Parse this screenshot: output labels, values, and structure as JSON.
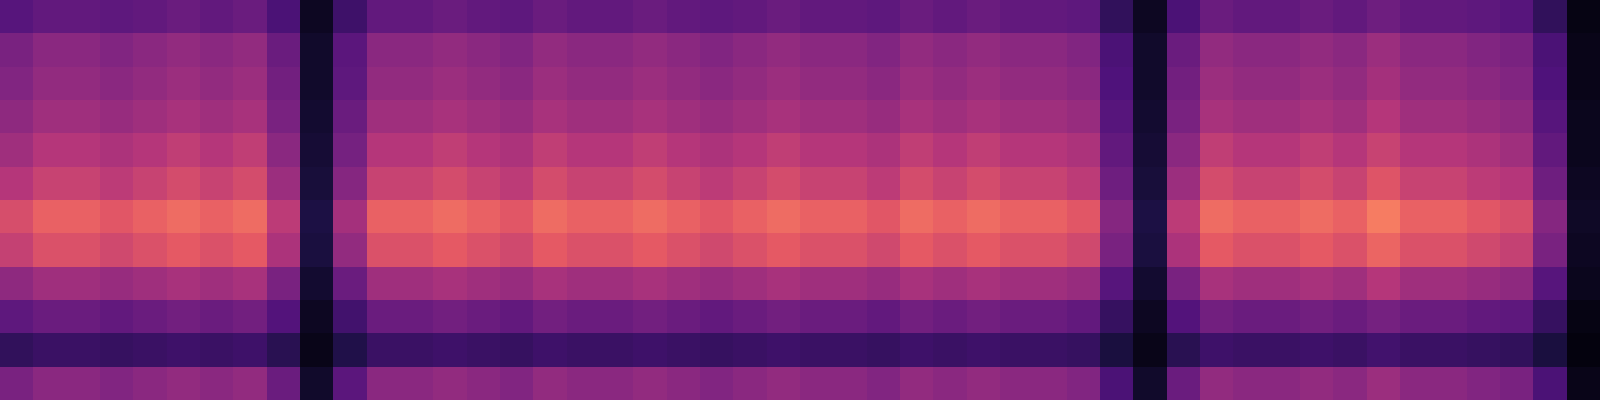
{
  "chart_data": {
    "type": "heatmap",
    "color": "magma",
    "tick_labels": false,
    "zlim": [
      0,
      1
    ],
    "cells": [
      [
        0.27,
        0.3,
        0.3,
        0.29,
        0.3,
        0.32,
        0.3,
        0.32,
        0.24,
        0.06,
        0.21,
        0.3,
        0.3,
        0.32,
        0.3,
        0.29,
        0.32,
        0.3,
        0.3,
        0.32,
        0.3,
        0.29,
        0.3,
        0.32,
        0.3,
        0.3,
        0.29,
        0.32,
        0.3,
        0.32,
        0.3,
        0.3,
        0.29,
        0.18,
        0.06,
        0.24,
        0.32,
        0.3,
        0.3,
        0.32,
        0.3,
        0.33,
        0.3,
        0.3,
        0.29,
        0.27,
        0.18,
        0.03
      ],
      [
        0.36,
        0.4,
        0.4,
        0.38,
        0.4,
        0.42,
        0.4,
        0.42,
        0.32,
        0.08,
        0.28,
        0.4,
        0.4,
        0.42,
        0.4,
        0.38,
        0.42,
        0.4,
        0.4,
        0.42,
        0.4,
        0.38,
        0.4,
        0.42,
        0.4,
        0.4,
        0.38,
        0.42,
        0.4,
        0.42,
        0.4,
        0.4,
        0.38,
        0.24,
        0.08,
        0.32,
        0.42,
        0.4,
        0.4,
        0.42,
        0.4,
        0.44,
        0.4,
        0.4,
        0.38,
        0.36,
        0.24,
        0.04
      ],
      [
        0.38,
        0.42,
        0.42,
        0.4,
        0.42,
        0.44,
        0.42,
        0.44,
        0.34,
        0.08,
        0.29,
        0.42,
        0.42,
        0.44,
        0.42,
        0.4,
        0.44,
        0.42,
        0.42,
        0.44,
        0.42,
        0.4,
        0.42,
        0.44,
        0.42,
        0.42,
        0.4,
        0.44,
        0.42,
        0.44,
        0.42,
        0.42,
        0.4,
        0.25,
        0.08,
        0.34,
        0.44,
        0.42,
        0.42,
        0.44,
        0.42,
        0.46,
        0.42,
        0.42,
        0.4,
        0.38,
        0.25,
        0.04
      ],
      [
        0.41,
        0.45,
        0.45,
        0.43,
        0.45,
        0.47,
        0.45,
        0.47,
        0.36,
        0.09,
        0.32,
        0.45,
        0.45,
        0.47,
        0.45,
        0.43,
        0.47,
        0.45,
        0.45,
        0.47,
        0.45,
        0.43,
        0.45,
        0.47,
        0.45,
        0.45,
        0.43,
        0.47,
        0.45,
        0.47,
        0.45,
        0.45,
        0.43,
        0.27,
        0.09,
        0.36,
        0.47,
        0.45,
        0.45,
        0.47,
        0.45,
        0.5,
        0.45,
        0.45,
        0.43,
        0.41,
        0.27,
        0.05
      ],
      [
        0.45,
        0.5,
        0.5,
        0.48,
        0.5,
        0.53,
        0.5,
        0.53,
        0.4,
        0.1,
        0.35,
        0.5,
        0.5,
        0.53,
        0.5,
        0.48,
        0.53,
        0.5,
        0.5,
        0.53,
        0.5,
        0.48,
        0.5,
        0.53,
        0.5,
        0.5,
        0.48,
        0.53,
        0.5,
        0.53,
        0.5,
        0.5,
        0.48,
        0.3,
        0.1,
        0.4,
        0.53,
        0.5,
        0.5,
        0.53,
        0.5,
        0.55,
        0.5,
        0.5,
        0.48,
        0.45,
        0.3,
        0.05
      ],
      [
        0.5,
        0.55,
        0.55,
        0.52,
        0.55,
        0.58,
        0.55,
        0.58,
        0.44,
        0.11,
        0.39,
        0.55,
        0.55,
        0.58,
        0.55,
        0.52,
        0.58,
        0.55,
        0.55,
        0.58,
        0.55,
        0.52,
        0.55,
        0.58,
        0.55,
        0.55,
        0.52,
        0.58,
        0.55,
        0.58,
        0.55,
        0.55,
        0.52,
        0.33,
        0.11,
        0.44,
        0.58,
        0.55,
        0.55,
        0.58,
        0.55,
        0.61,
        0.55,
        0.55,
        0.52,
        0.5,
        0.33,
        0.06
      ],
      [
        0.59,
        0.65,
        0.65,
        0.62,
        0.65,
        0.68,
        0.65,
        0.68,
        0.52,
        0.13,
        0.46,
        0.65,
        0.65,
        0.68,
        0.65,
        0.62,
        0.68,
        0.65,
        0.65,
        0.68,
        0.65,
        0.62,
        0.65,
        0.68,
        0.65,
        0.65,
        0.62,
        0.68,
        0.65,
        0.68,
        0.65,
        0.65,
        0.62,
        0.39,
        0.13,
        0.52,
        0.68,
        0.65,
        0.65,
        0.68,
        0.65,
        0.72,
        0.65,
        0.65,
        0.62,
        0.59,
        0.39,
        0.07
      ],
      [
        0.54,
        0.6,
        0.6,
        0.57,
        0.6,
        0.63,
        0.6,
        0.63,
        0.48,
        0.12,
        0.42,
        0.6,
        0.6,
        0.63,
        0.6,
        0.57,
        0.63,
        0.6,
        0.6,
        0.63,
        0.6,
        0.57,
        0.6,
        0.63,
        0.6,
        0.6,
        0.57,
        0.63,
        0.6,
        0.63,
        0.6,
        0.6,
        0.57,
        0.36,
        0.12,
        0.48,
        0.63,
        0.6,
        0.6,
        0.63,
        0.6,
        0.66,
        0.6,
        0.6,
        0.57,
        0.54,
        0.36,
        0.06
      ],
      [
        0.41,
        0.45,
        0.45,
        0.43,
        0.45,
        0.47,
        0.45,
        0.47,
        0.36,
        0.09,
        0.32,
        0.45,
        0.45,
        0.47,
        0.45,
        0.43,
        0.47,
        0.45,
        0.45,
        0.47,
        0.45,
        0.43,
        0.45,
        0.47,
        0.45,
        0.45,
        0.43,
        0.47,
        0.45,
        0.47,
        0.45,
        0.45,
        0.43,
        0.27,
        0.09,
        0.36,
        0.47,
        0.45,
        0.45,
        0.47,
        0.45,
        0.5,
        0.45,
        0.45,
        0.43,
        0.41,
        0.27,
        0.05
      ],
      [
        0.29,
        0.32,
        0.32,
        0.3,
        0.32,
        0.34,
        0.32,
        0.34,
        0.26,
        0.06,
        0.22,
        0.32,
        0.32,
        0.34,
        0.32,
        0.3,
        0.34,
        0.32,
        0.32,
        0.34,
        0.32,
        0.3,
        0.32,
        0.34,
        0.32,
        0.32,
        0.3,
        0.34,
        0.32,
        0.34,
        0.32,
        0.32,
        0.3,
        0.19,
        0.06,
        0.26,
        0.34,
        0.32,
        0.32,
        0.34,
        0.32,
        0.35,
        0.32,
        0.32,
        0.3,
        0.29,
        0.19,
        0.03
      ],
      [
        0.18,
        0.2,
        0.2,
        0.19,
        0.2,
        0.21,
        0.2,
        0.21,
        0.16,
        0.04,
        0.14,
        0.2,
        0.2,
        0.21,
        0.2,
        0.19,
        0.21,
        0.2,
        0.2,
        0.21,
        0.2,
        0.19,
        0.2,
        0.21,
        0.2,
        0.2,
        0.19,
        0.21,
        0.2,
        0.21,
        0.2,
        0.2,
        0.19,
        0.12,
        0.04,
        0.16,
        0.21,
        0.2,
        0.2,
        0.21,
        0.2,
        0.22,
        0.2,
        0.2,
        0.19,
        0.18,
        0.12,
        0.02
      ],
      [
        0.36,
        0.4,
        0.4,
        0.38,
        0.4,
        0.42,
        0.4,
        0.42,
        0.32,
        0.08,
        0.28,
        0.4,
        0.4,
        0.42,
        0.4,
        0.38,
        0.42,
        0.4,
        0.4,
        0.42,
        0.4,
        0.38,
        0.4,
        0.42,
        0.4,
        0.4,
        0.38,
        0.42,
        0.4,
        0.42,
        0.4,
        0.4,
        0.38,
        0.24,
        0.08,
        0.32,
        0.42,
        0.4,
        0.4,
        0.42,
        0.4,
        0.44,
        0.4,
        0.4,
        0.38,
        0.36,
        0.24,
        0.04
      ]
    ]
  }
}
